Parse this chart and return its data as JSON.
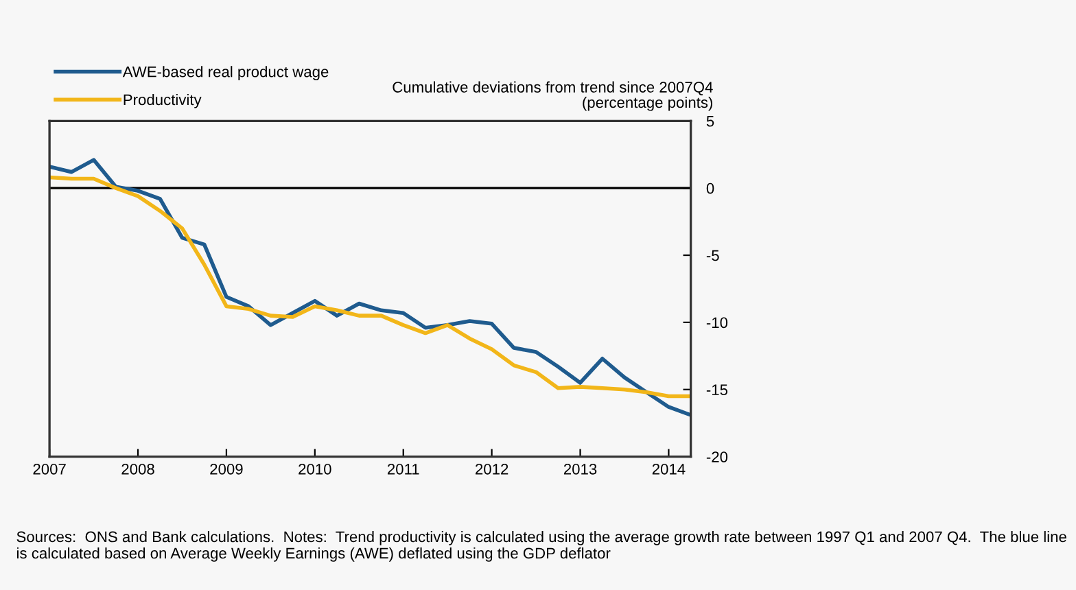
{
  "chart_data": {
    "type": "line",
    "ylabel": "Cumulative deviations from trend since 2007Q4\n(percentage points)",
    "x": [
      2007.0,
      2007.25,
      2007.5,
      2007.75,
      2008.0,
      2008.25,
      2008.5,
      2008.75,
      2009.0,
      2009.25,
      2009.5,
      2009.75,
      2010.0,
      2010.25,
      2010.5,
      2010.75,
      2011.0,
      2011.25,
      2011.5,
      2011.75,
      2012.0,
      2012.25,
      2012.5,
      2012.75,
      2013.0,
      2013.25,
      2013.5,
      2013.75,
      2014.0,
      2014.25
    ],
    "series": [
      {
        "name": "AWE-based real product wage",
        "color": "#1f5b8e",
        "values": [
          1.6,
          1.2,
          2.1,
          0.1,
          -0.2,
          -0.8,
          -3.7,
          -4.2,
          -8.1,
          -8.8,
          -10.2,
          -9.3,
          -8.4,
          -9.5,
          -8.6,
          -9.1,
          -9.3,
          -10.4,
          -10.2,
          -9.9,
          -10.1,
          -11.9,
          -12.2,
          -13.3,
          -14.5,
          -12.7,
          -14.1,
          -15.2,
          -16.3,
          -16.9
        ]
      },
      {
        "name": "Productivity",
        "color": "#f2b619",
        "values": [
          0.8,
          0.7,
          0.7,
          0.0,
          -0.6,
          -1.7,
          -3.0,
          -5.7,
          -8.8,
          -9.0,
          -9.5,
          -9.6,
          -8.8,
          -9.1,
          -9.5,
          -9.5,
          -10.2,
          -10.8,
          -10.2,
          -11.2,
          -12.0,
          -13.2,
          -13.7,
          -14.9,
          -14.8,
          -14.9,
          -15.0,
          -15.2,
          -15.5,
          -15.5
        ]
      }
    ],
    "xlim": [
      2007,
      2014.25
    ],
    "xticks": [
      2007,
      2008,
      2009,
      2010,
      2011,
      2012,
      2013,
      2014
    ],
    "ylim": [
      -20,
      5
    ],
    "yticks": [
      5,
      0,
      -5,
      -10,
      -15,
      -20
    ],
    "ref_lines": [
      {
        "axis": "y",
        "value": 0,
        "color": "#000000"
      }
    ],
    "legend": "top left",
    "grid": false,
    "marker": "none",
    "line_style": "solid",
    "annotations": [
      "Sources:  ONS and Bank calculations.  Notes:  Trend productivity is calculated using the average growth rate between 1997 Q1 and 2007 Q4.  The blue line is calculated based on Average Weekly Earnings (AWE) deflated using the GDP deflator"
    ]
  }
}
